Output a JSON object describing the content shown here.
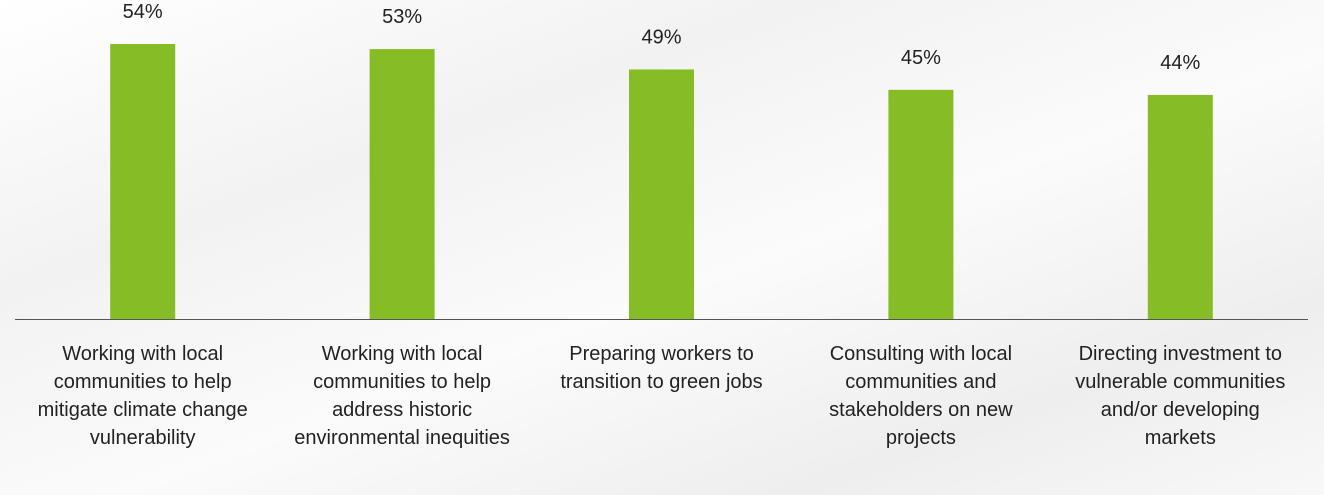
{
  "chart_data": {
    "type": "bar",
    "categories": [
      "Working with local communities to help mitigate climate change vulnerability",
      "Working with local communities to help address historic environmental inequities",
      "Preparing workers to transition to green jobs",
      "Consulting with local communities and stakeholders on new projects",
      "Directing investment to vulnerable communities and/or developing markets"
    ],
    "values": [
      54,
      53,
      49,
      45,
      44
    ],
    "value_labels": [
      "54%",
      "53%",
      "49%",
      "45%",
      "44%"
    ],
    "color": "#86bc25"
  }
}
